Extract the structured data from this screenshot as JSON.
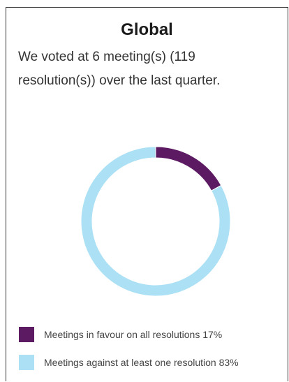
{
  "heading": "Global",
  "description": "We voted at 6 meeting(s) (119 resolution(s)) over the last quarter.",
  "colors": {
    "favour": "#5b1a61",
    "against": "#abe0f5"
  },
  "chart_data": {
    "type": "pie",
    "donut": true,
    "categories": [
      "Meetings in favour on all resolutions",
      "Meetings against at least one resolution"
    ],
    "values": [
      17,
      83
    ],
    "value_unit": "%",
    "legend_placement": "bottom",
    "legend": [
      {
        "label": "Meetings in favour on all resolutions 17%",
        "color": "#5b1a61"
      },
      {
        "label": "Meetings against at least one resolution 83%",
        "color": "#abe0f5"
      }
    ]
  }
}
